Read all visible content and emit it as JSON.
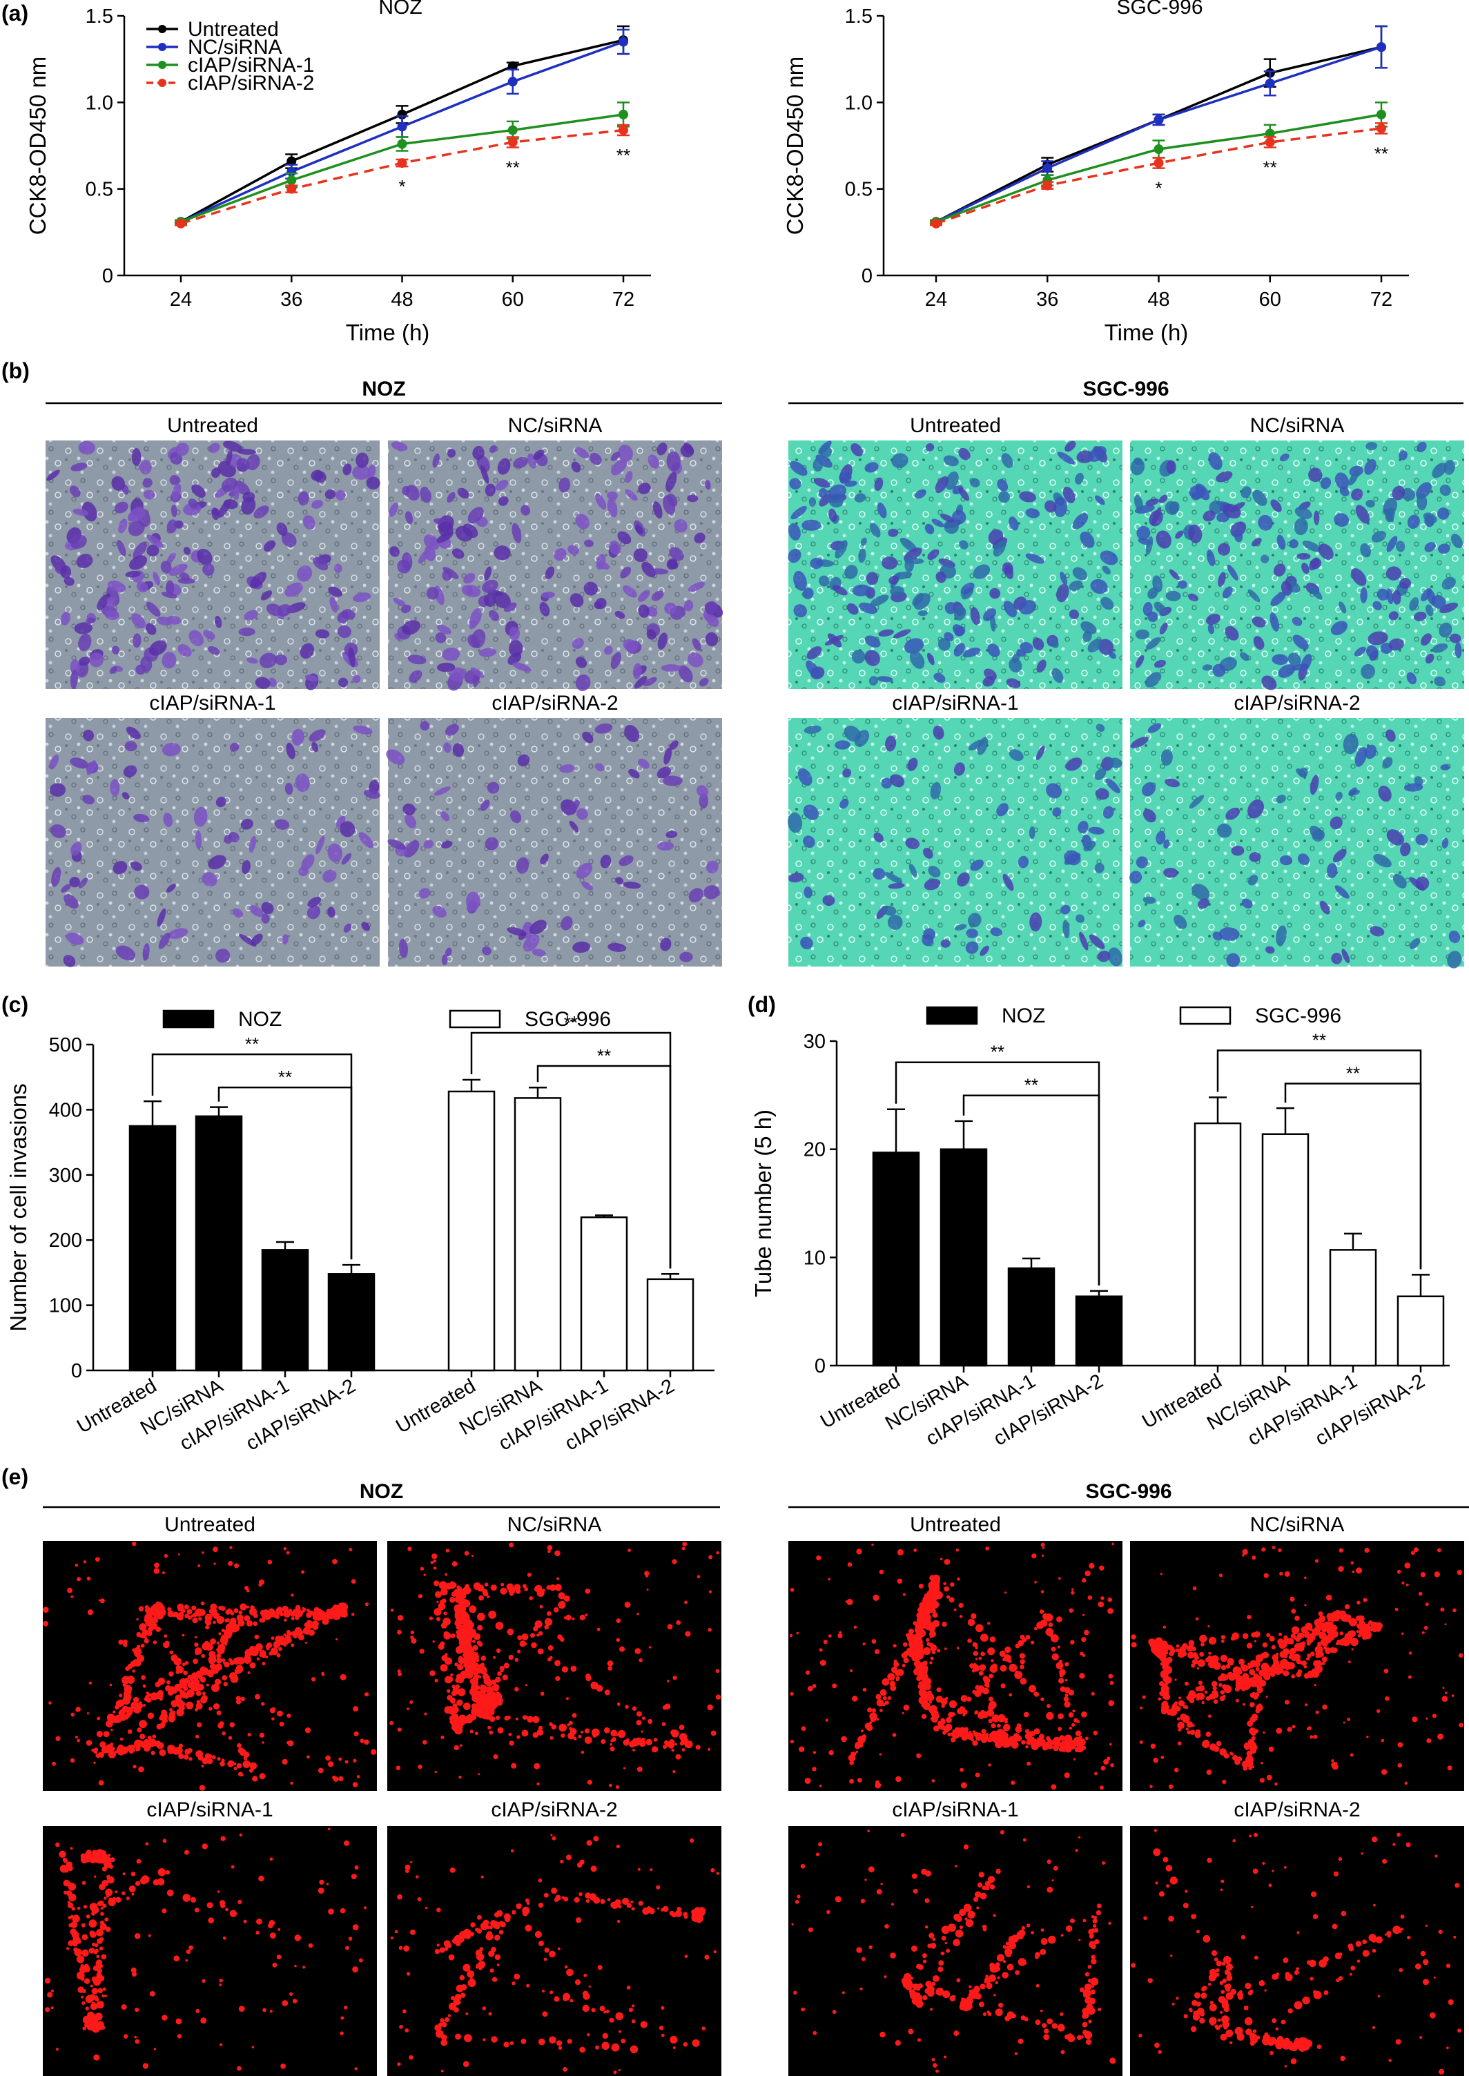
{
  "panels": {
    "a": "(a)",
    "b": "(b)",
    "c": "(c)",
    "d": "(d)",
    "e": "(e)"
  },
  "colors": {
    "untreated": "#000000",
    "nc_sirna": "#1f2fbf",
    "ciap_sirna_1": "#1f8f1f",
    "ciap_sirna_2": "#e8321e",
    "invasion_noz_bg": "#8e9aa8",
    "invasion_sgc_bg": "#55d6b4",
    "tube_fluor": "#ff1a1a"
  },
  "chart_data": [
    {
      "id": "a-noz",
      "type": "line",
      "title": "NOZ",
      "xlabel": "Time (h)",
      "ylabel": "CCK8-OD450 nm",
      "x": [
        24,
        36,
        48,
        60,
        72
      ],
      "xticks": [
        "24",
        "36",
        "48",
        "60",
        "72"
      ],
      "ylim": [
        0,
        1.5
      ],
      "yticks": [
        "0",
        "0.5",
        "1.0",
        "1.5"
      ],
      "ytick_values": [
        0,
        0.5,
        1.0,
        1.5
      ],
      "legend": "top-left",
      "series": [
        {
          "name": "Untreated",
          "key": "untreated",
          "dashed": false,
          "values": [
            0.31,
            0.66,
            0.93,
            1.21,
            1.36
          ],
          "err": [
            0.01,
            0.04,
            0.05,
            0.02,
            0.08
          ]
        },
        {
          "name": "NC/siRNA",
          "key": "nc_sirna",
          "dashed": false,
          "values": [
            0.31,
            0.6,
            0.86,
            1.12,
            1.35
          ],
          "err": [
            0.01,
            0.04,
            0.06,
            0.07,
            0.07
          ]
        },
        {
          "name": "cIAP/siRNA-1",
          "key": "ciap_sirna_1",
          "dashed": false,
          "values": [
            0.31,
            0.55,
            0.76,
            0.84,
            0.93
          ],
          "err": [
            0.01,
            0.04,
            0.04,
            0.05,
            0.07
          ]
        },
        {
          "name": "cIAP/siRNA-2",
          "key": "ciap_sirna_2",
          "dashed": true,
          "values": [
            0.3,
            0.5,
            0.65,
            0.77,
            0.84
          ],
          "err": [
            0.01,
            0.02,
            0.02,
            0.03,
            0.03
          ]
        }
      ],
      "annotations": [
        {
          "x": 48,
          "text": "*"
        },
        {
          "x": 60,
          "text": "**"
        },
        {
          "x": 72,
          "text": "**"
        }
      ]
    },
    {
      "id": "a-sgc",
      "type": "line",
      "title": "SGC-996",
      "xlabel": "Time (h)",
      "ylabel": "CCK8-OD450 nm",
      "x": [
        24,
        36,
        48,
        60,
        72
      ],
      "xticks": [
        "24",
        "36",
        "48",
        "60",
        "72"
      ],
      "ylim": [
        0,
        1.5
      ],
      "yticks": [
        "0",
        "0.5",
        "1.0",
        "1.5"
      ],
      "ytick_values": [
        0,
        0.5,
        1.0,
        1.5
      ],
      "series": [
        {
          "name": "Untreated",
          "key": "untreated",
          "dashed": false,
          "values": [
            0.31,
            0.64,
            0.9,
            1.17,
            1.32
          ],
          "err": [
            0.01,
            0.04,
            0.03,
            0.08,
            0.12
          ]
        },
        {
          "name": "NC/siRNA",
          "key": "nc_sirna",
          "dashed": false,
          "values": [
            0.31,
            0.62,
            0.9,
            1.11,
            1.32
          ],
          "err": [
            0.01,
            0.04,
            0.03,
            0.07,
            0.12
          ]
        },
        {
          "name": "cIAP/siRNA-1",
          "key": "ciap_sirna_1",
          "dashed": false,
          "values": [
            0.31,
            0.55,
            0.73,
            0.82,
            0.93
          ],
          "err": [
            0.01,
            0.03,
            0.05,
            0.05,
            0.07
          ]
        },
        {
          "name": "cIAP/siRNA-2",
          "key": "ciap_sirna_2",
          "dashed": true,
          "values": [
            0.3,
            0.52,
            0.65,
            0.77,
            0.85
          ],
          "err": [
            0.01,
            0.02,
            0.03,
            0.03,
            0.03
          ]
        }
      ],
      "annotations": [
        {
          "x": 48,
          "text": "*"
        },
        {
          "x": 60,
          "text": "**"
        },
        {
          "x": 72,
          "text": "**"
        }
      ]
    },
    {
      "id": "c",
      "type": "bar",
      "ylabel": "Number of cell invasions",
      "ylim": [
        0,
        500
      ],
      "yticks": [
        "0",
        "100",
        "200",
        "300",
        "400",
        "500"
      ],
      "ytick_values": [
        0,
        100,
        200,
        300,
        400,
        500
      ],
      "categories": [
        "Untreated",
        "NC/siRNA",
        "cIAP/siRNA-1",
        "cIAP/siRNA-2"
      ],
      "legend": "top",
      "series": [
        {
          "name": "NOZ",
          "fill": "#000000",
          "values": [
            375,
            390,
            185,
            148
          ],
          "err": [
            38,
            14,
            12,
            14
          ]
        },
        {
          "name": "SGC-996",
          "fill": "#ffffff",
          "values": [
            428,
            418,
            235,
            140
          ],
          "err": [
            18,
            16,
            3,
            8
          ]
        }
      ],
      "significance": [
        {
          "series": 0,
          "from": 0,
          "to": 3,
          "text": "**"
        },
        {
          "series": 0,
          "from": 1,
          "to": 3,
          "text": "**"
        },
        {
          "series": 1,
          "from": 0,
          "to": 3,
          "text": "**"
        },
        {
          "series": 1,
          "from": 1,
          "to": 3,
          "text": "**"
        }
      ]
    },
    {
      "id": "d",
      "type": "bar",
      "ylabel": "Tube number (5 h)",
      "ylim": [
        0,
        30
      ],
      "yticks": [
        "0",
        "10",
        "20",
        "30"
      ],
      "ytick_values": [
        0,
        10,
        20,
        30
      ],
      "categories": [
        "Untreated",
        "NC/siRNA",
        "cIAP/siRNA-1",
        "cIAP/siRNA-2"
      ],
      "legend": "top",
      "series": [
        {
          "name": "NOZ",
          "fill": "#000000",
          "values": [
            19.7,
            20.0,
            9.0,
            6.4
          ],
          "err": [
            4.0,
            2.6,
            0.9,
            0.5
          ]
        },
        {
          "name": "SGC-996",
          "fill": "#ffffff",
          "values": [
            22.4,
            21.4,
            10.7,
            6.4
          ],
          "err": [
            2.4,
            2.4,
            1.5,
            2.0
          ]
        }
      ],
      "significance": [
        {
          "series": 0,
          "from": 0,
          "to": 3,
          "text": "**"
        },
        {
          "series": 0,
          "from": 1,
          "to": 3,
          "text": "**"
        },
        {
          "series": 1,
          "from": 0,
          "to": 3,
          "text": "**"
        },
        {
          "series": 1,
          "from": 1,
          "to": 3,
          "text": "**"
        }
      ]
    }
  ],
  "invasion_images": {
    "groups": [
      {
        "title": "NOZ",
        "tone": "noz",
        "images": [
          "Untreated",
          "NC/siRNA",
          "cIAP/siRNA-1",
          "cIAP/siRNA-2"
        ]
      },
      {
        "title": "SGC-996",
        "tone": "sgc",
        "images": [
          "Untreated",
          "NC/siRNA",
          "cIAP/siRNA-1",
          "cIAP/siRNA-2"
        ]
      }
    ],
    "cell_density": [
      1.0,
      1.0,
      0.45,
      0.4
    ]
  },
  "tube_images": {
    "groups": [
      {
        "title": "NOZ",
        "images": [
          "Untreated",
          "NC/siRNA",
          "cIAP/siRNA-1",
          "cIAP/siRNA-2"
        ]
      },
      {
        "title": "SGC-996",
        "images": [
          "Untreated",
          "NC/siRNA",
          "cIAP/siRNA-1",
          "cIAP/siRNA-2"
        ]
      }
    ],
    "signal_density": [
      1.0,
      1.0,
      0.5,
      0.4
    ]
  }
}
